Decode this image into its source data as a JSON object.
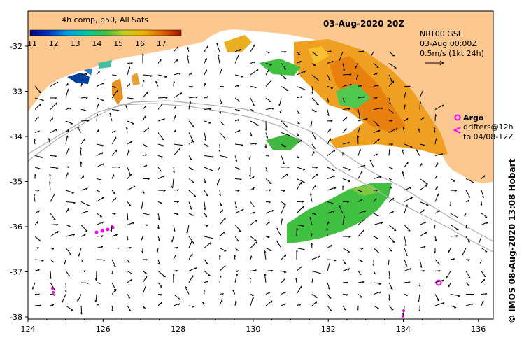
{
  "colorbar": {
    "title": "4h comp, p50, All Sats",
    "ticks": [
      "11",
      "12",
      "13",
      "14",
      "15",
      "16",
      "17"
    ]
  },
  "date_label": "03-Aug-2020 20Z",
  "current_info": {
    "line1": "NRT00 GSL",
    "line2": "03-Aug 00:00Z",
    "line3": "0.5m/s (1kt 24h)"
  },
  "legend": {
    "argo_label": "Argo",
    "drifters_line1": "drifters@12h",
    "drifters_line2": "to 04/08-12Z",
    "argo_color": "#ff00ff"
  },
  "credit": "© IMOS 08-Aug-2020 13:08 Hobart",
  "axes": {
    "x_ticks": [
      "124",
      "126",
      "128",
      "130",
      "132",
      "134",
      "136"
    ],
    "y_ticks": [
      "-32",
      "-33",
      "-34",
      "-35",
      "-36",
      "-37",
      "-38"
    ]
  },
  "colors": {
    "land": "#fcc890",
    "ocean": "#ffffff",
    "sst_warm": "#f0a020",
    "sst_mid": "#40c040",
    "sst_cool": "#0040a0"
  }
}
